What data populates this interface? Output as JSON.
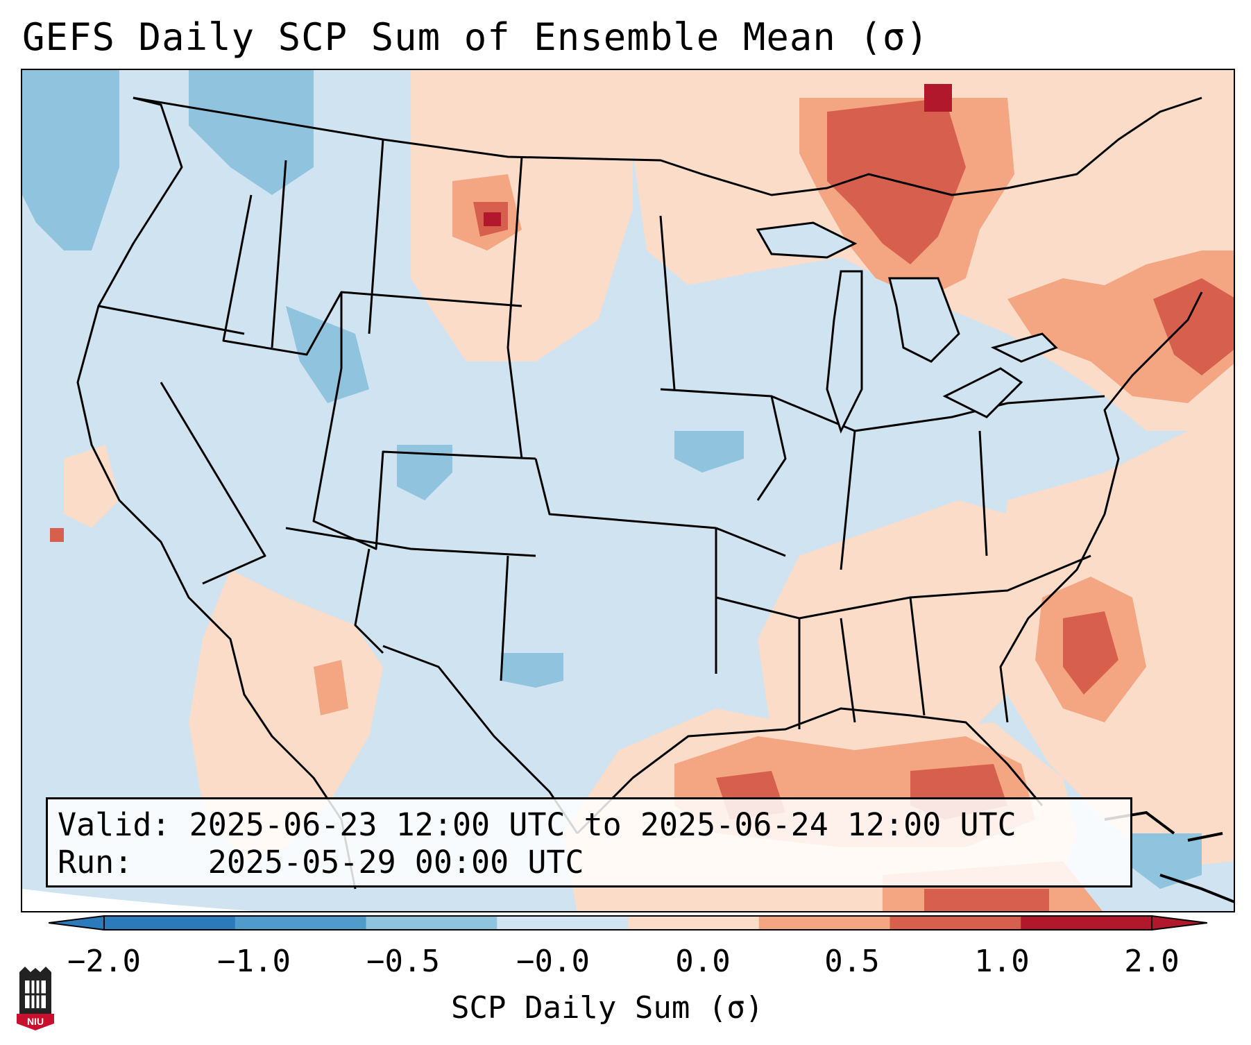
{
  "title": "GEFS Daily SCP Sum of Ensemble Mean (σ)",
  "map": {
    "region": "Contiguous United States",
    "variable": "Supercell Composite Parameter daily sum standardized anomaly",
    "colors": {
      "ocean_background": "#cfe3f0",
      "land_neutral": "#d0e4f1",
      "outline": "#000000"
    }
  },
  "info": {
    "valid_label": "Valid:",
    "valid_value": "2025-06-23 12:00 UTC to 2025-06-24 12:00 UTC",
    "run_label": "Run:",
    "run_value": "2025-05-29 00:00 UTC"
  },
  "colorbar": {
    "tick_labels": [
      "−2.0",
      "−1.0",
      "−0.5",
      "−0.0",
      "0.0",
      "0.5",
      "1.0",
      "2.0"
    ],
    "colors": [
      "#2b7bba",
      "#4f9bcb",
      "#8fc3de",
      "#d0e4f1",
      "#fbdcc8",
      "#f4a582",
      "#d6604d",
      "#b2182b"
    ],
    "label": "SCP Daily Sum (σ)"
  },
  "logo": {
    "text": "NIU",
    "colors": {
      "shield": "#c8102e",
      "tower": "#222222"
    }
  }
}
